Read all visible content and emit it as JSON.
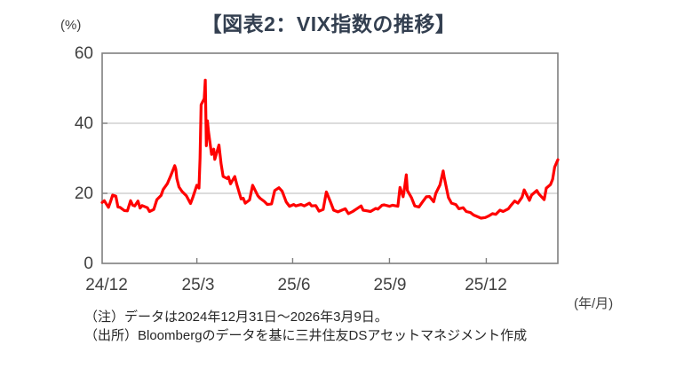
{
  "title": "【図表2：VIX指数の推移】",
  "y_axis": {
    "unit": "(%)"
  },
  "x_axis": {
    "unit": "(年/月)"
  },
  "notes": [
    "（注）データは2024年12月31日～2026年3月9日。",
    "（出所）Bloombergのデータを基に三井住友DSアセットマネジメント作成"
  ],
  "colors": {
    "line": "#FF0000",
    "axis": "#7F7F7F",
    "grid": "#C6C6C6",
    "title": "#333F50",
    "text": "#404040"
  },
  "chart_data": {
    "type": "line",
    "title": "【図表2：VIX指数の推移】",
    "ylabel": "(%)",
    "xlabel": "(年/月)",
    "ylim": [
      0,
      60
    ],
    "grid": "horizontal",
    "gridlines_y": [
      20,
      40
    ],
    "legend": "none",
    "x_start_date": "2024-12-31",
    "x_end_date": "2026-03-09",
    "x_span_days": 433,
    "y_ticks": [
      {
        "label": "60",
        "value": 60
      },
      {
        "label": "40",
        "value": 40
      },
      {
        "label": "20",
        "value": 20
      },
      {
        "label": "0",
        "value": 0
      }
    ],
    "x_ticks": [
      {
        "label": "24/12",
        "day": 0
      },
      {
        "label": "25/3",
        "day": 90
      },
      {
        "label": "25/6",
        "day": 181
      },
      {
        "label": "25/9",
        "day": 273
      },
      {
        "label": "25/12",
        "day": 365
      }
    ],
    "series": [
      {
        "name": "VIX指数",
        "color": "#FF0000",
        "x_days": [
          0,
          2,
          6,
          8,
          10,
          13,
          15,
          17,
          21,
          24,
          27,
          29,
          31,
          34,
          36,
          38,
          43,
          45,
          49,
          52,
          56,
          58,
          62,
          63,
          65,
          69,
          70,
          71,
          73,
          76,
          78,
          80,
          84,
          86,
          90,
          92,
          93,
          94,
          97,
          98,
          99,
          100,
          101,
          104,
          106,
          107,
          111,
          113,
          115,
          119,
          120,
          122,
          126,
          128,
          132,
          134,
          136,
          140,
          143,
          148,
          150,
          154,
          157,
          161,
          164,
          168,
          171,
          175,
          178,
          182,
          184,
          189,
          192,
          197,
          199,
          203,
          206,
          210,
          213,
          217,
          220,
          224,
          227,
          231,
          234,
          238,
          241,
          246,
          248,
          252,
          255,
          260,
          262,
          266,
          268,
          273,
          276,
          281,
          283,
          286,
          287,
          289,
          290,
          294,
          297,
          301,
          304,
          308,
          311,
          315,
          317,
          321,
          324,
          325,
          329,
          332,
          336,
          339,
          343,
          346,
          350,
          353,
          357,
          360,
          364,
          367,
          371,
          374,
          378,
          381,
          386,
          388,
          392,
          395,
          399,
          401,
          406,
          408,
          413,
          415,
          420,
          422,
          426,
          428,
          430,
          433
        ],
        "values": [
          17.4,
          17.9,
          16.0,
          17.7,
          19.5,
          19.2,
          16.1,
          16.0,
          15.1,
          15.0,
          17.9,
          16.6,
          16.4,
          17.8,
          15.8,
          16.5,
          15.9,
          14.8,
          15.4,
          18.2,
          19.4,
          21.1,
          22.8,
          23.5,
          24.9,
          27.9,
          26.9,
          24.2,
          21.8,
          20.5,
          19.9,
          19.3,
          17.1,
          18.7,
          22.3,
          21.5,
          30.0,
          45.3,
          47.0,
          52.3,
          33.6,
          40.7,
          37.6,
          31.1,
          32.6,
          29.7,
          33.8,
          28.4,
          24.8,
          24.2,
          24.7,
          22.7,
          24.8,
          22.5,
          18.4,
          18.6,
          17.2,
          18.1,
          22.3,
          19.3,
          18.6,
          17.7,
          16.8,
          17.0,
          20.8,
          21.6,
          20.6,
          17.5,
          16.3,
          16.8,
          16.4,
          16.8,
          16.4,
          17.2,
          16.4,
          16.5,
          14.9,
          15.4,
          20.4,
          17.5,
          15.2,
          14.7,
          15.1,
          15.6,
          14.2,
          14.8,
          15.4,
          16.4,
          15.2,
          15.0,
          14.8,
          15.7,
          15.5,
          16.6,
          16.7,
          16.3,
          16.6,
          16.3,
          21.7,
          19.0,
          20.8,
          25.3,
          20.8,
          18.7,
          16.4,
          16.1,
          17.4,
          19.0,
          19.1,
          17.6,
          20.0,
          22.4,
          26.4,
          24.7,
          18.8,
          17.2,
          16.8,
          15.6,
          15.9,
          14.8,
          14.5,
          13.8,
          13.3,
          12.9,
          13.1,
          13.5,
          14.2,
          14.0,
          15.2,
          14.8,
          15.6,
          16.4,
          17.8,
          17.2,
          18.9,
          21.0,
          18.0,
          19.5,
          20.8,
          19.8,
          18.2,
          21.5,
          22.5,
          24.0,
          27.5,
          29.6
        ]
      }
    ]
  }
}
